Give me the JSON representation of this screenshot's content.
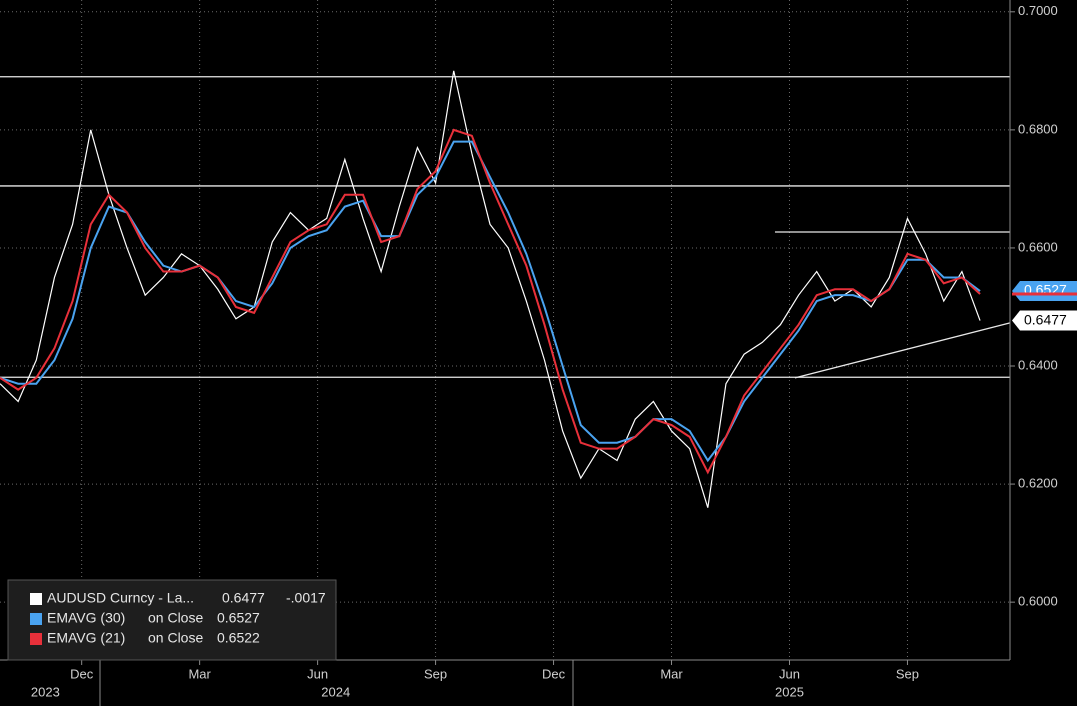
{
  "chart_data": {
    "type": "line",
    "background": "#000000",
    "grid": true,
    "xlim": [
      0,
      55.65
    ],
    "ylim": [
      0.5902,
      0.702
    ],
    "yticks": [
      {
        "value": 0.6,
        "label": "0.6000"
      },
      {
        "value": 0.62,
        "label": "0.6200"
      },
      {
        "value": 0.64,
        "label": "0.6400"
      },
      {
        "value": 0.66,
        "label": "0.6600"
      },
      {
        "value": 0.68,
        "label": "0.6800"
      },
      {
        "value": 0.7,
        "label": "0.7000"
      }
    ],
    "xticks": [
      {
        "value": 4.5,
        "label": "Dec"
      },
      {
        "value": 11,
        "label": "Mar"
      },
      {
        "value": 17.5,
        "label": "Jun"
      },
      {
        "value": 24,
        "label": "Sep"
      },
      {
        "value": 30.5,
        "label": "Dec"
      },
      {
        "value": 37,
        "label": "Mar"
      },
      {
        "value": 43.5,
        "label": "Jun"
      },
      {
        "value": 50,
        "label": "Sep"
      }
    ],
    "year_ticks": [
      {
        "value": 2.5,
        "label": "2023"
      },
      {
        "value": 18.5,
        "label": "2024"
      },
      {
        "value": 43.5,
        "label": "2025"
      }
    ],
    "series": [
      {
        "name": "AUDUSD Curncy - La...",
        "color": "#ffffff",
        "change": {
          "value": -0.0017,
          "label": "-.0017"
        },
        "values": [
          0.637,
          0.634,
          0.641,
          0.655,
          0.664,
          0.68,
          0.669,
          0.66,
          0.652,
          0.655,
          0.659,
          0.657,
          0.653,
          0.648,
          0.65,
          0.661,
          0.666,
          0.663,
          0.665,
          0.675,
          0.665,
          0.656,
          0.667,
          0.677,
          0.671,
          0.69,
          0.676,
          0.664,
          0.66,
          0.651,
          0.641,
          0.629,
          0.621,
          0.626,
          0.624,
          0.631,
          0.634,
          0.629,
          0.626,
          0.616,
          0.637,
          0.642,
          0.644,
          0.647,
          0.652,
          0.656,
          0.651,
          0.653,
          0.65,
          0.655,
          0.665,
          0.659,
          0.651,
          0.656,
          0.6477
        ]
      },
      {
        "name": "EMAVG (30)",
        "basis": "on Close",
        "color": "#4aa3f0",
        "values": [
          0.638,
          0.637,
          0.637,
          0.641,
          0.648,
          0.66,
          0.667,
          0.666,
          0.661,
          0.657,
          0.656,
          0.657,
          0.655,
          0.651,
          0.65,
          0.654,
          0.66,
          0.662,
          0.663,
          0.667,
          0.668,
          0.662,
          0.662,
          0.669,
          0.672,
          0.678,
          0.678,
          0.672,
          0.666,
          0.659,
          0.65,
          0.64,
          0.63,
          0.627,
          0.627,
          0.628,
          0.631,
          0.631,
          0.629,
          0.624,
          0.628,
          0.634,
          0.638,
          0.642,
          0.646,
          0.651,
          0.652,
          0.652,
          0.651,
          0.653,
          0.658,
          0.658,
          0.655,
          0.655,
          0.6527
        ]
      },
      {
        "name": "EMAVG (21)",
        "basis": "on Close",
        "color": "#e8303a",
        "values": [
          0.638,
          0.636,
          0.638,
          0.643,
          0.651,
          0.664,
          0.669,
          0.666,
          0.66,
          0.656,
          0.656,
          0.657,
          0.655,
          0.65,
          0.649,
          0.655,
          0.661,
          0.663,
          0.664,
          0.669,
          0.669,
          0.661,
          0.662,
          0.67,
          0.673,
          0.68,
          0.679,
          0.671,
          0.664,
          0.657,
          0.647,
          0.636,
          0.627,
          0.626,
          0.626,
          0.628,
          0.631,
          0.63,
          0.628,
          0.622,
          0.628,
          0.635,
          0.639,
          0.643,
          0.647,
          0.652,
          0.653,
          0.653,
          0.651,
          0.653,
          0.659,
          0.658,
          0.654,
          0.655,
          0.6522
        ]
      }
    ],
    "hlines": [
      0.689,
      0.6705,
      0.6381
    ],
    "segments": [
      {
        "x": [
          42.7,
          55.65
        ],
        "y": [
          0.6627,
          0.6627
        ]
      },
      {
        "x": [
          43.8,
          55.65
        ],
        "y": [
          0.638,
          0.6473
        ]
      }
    ]
  }
}
